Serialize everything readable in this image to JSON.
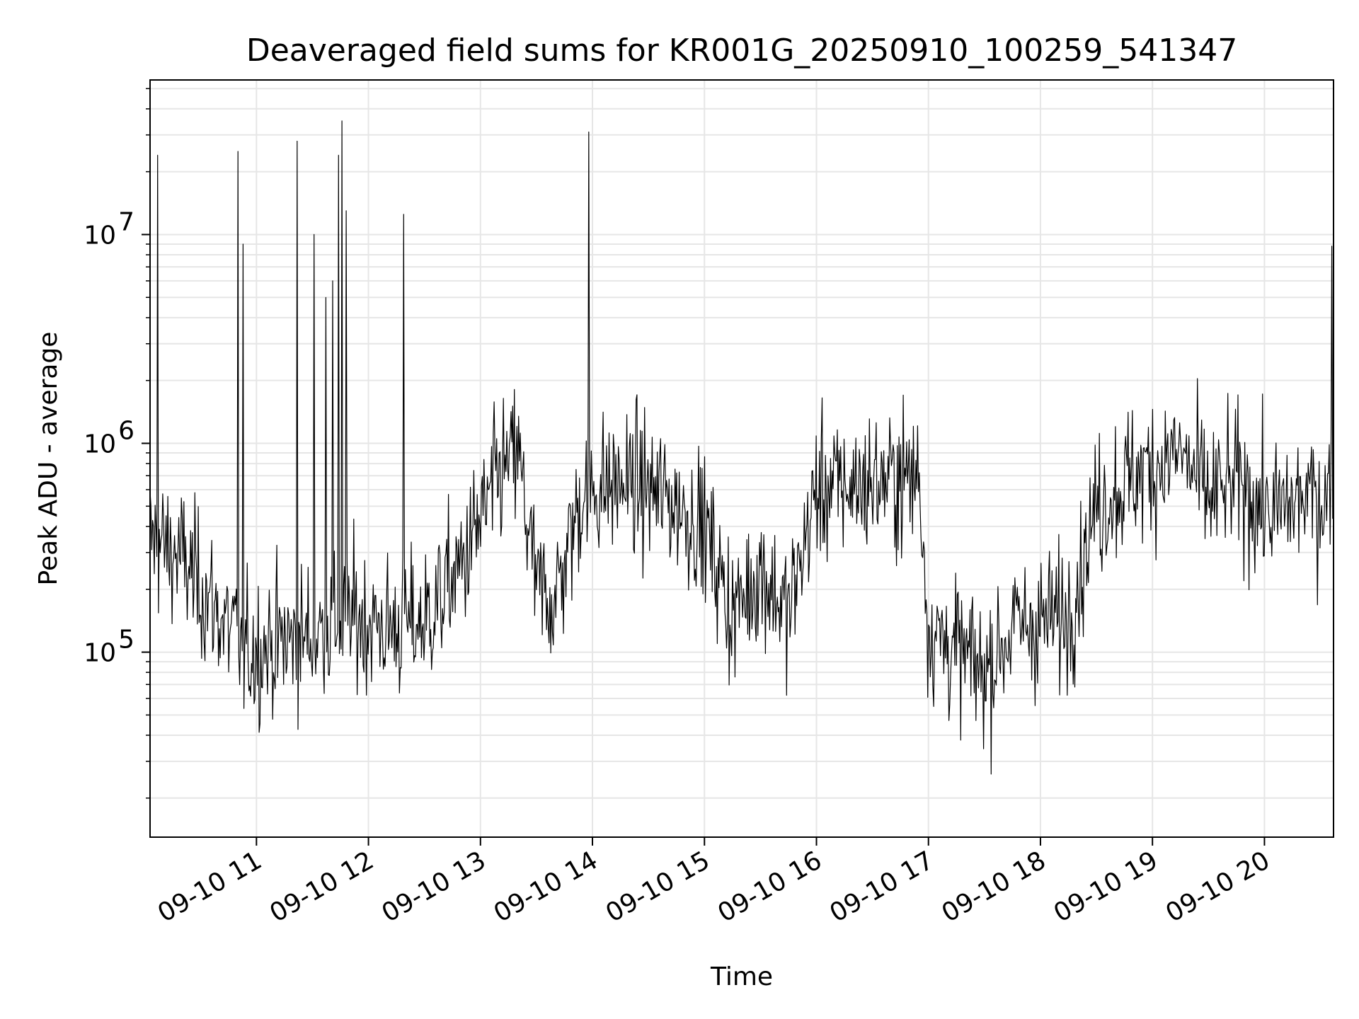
{
  "chart_data": {
    "type": "line",
    "title": "Deaveraged field sums for KR001G_20250910_100259_541347",
    "xlabel": "Time",
    "ylabel": "Peak ADU - average",
    "yscale": "log",
    "grid": true,
    "color": "#000000",
    "x_range": [
      "2025-09-10 10:03",
      "2025-09-10 20:37"
    ],
    "ylim": [
      13000,
      55000000
    ],
    "x_tick_labels": [
      "09-10 11",
      "09-10 12",
      "09-10 13",
      "09-10 14",
      "09-10 15",
      "09-10 16",
      "09-10 17",
      "09-10 18",
      "09-10 19",
      "09-10 20"
    ],
    "y_tick_labels": [
      {
        "base": "10",
        "exp": "5"
      },
      {
        "base": "10",
        "exp": "6"
      },
      {
        "base": "10",
        "exp": "7"
      }
    ],
    "series": [
      {
        "baseline": [
          [
            "10:03",
            350000
          ],
          [
            "10:20",
            280000
          ],
          [
            "10:40",
            150000
          ],
          [
            "10:55",
            100000
          ],
          [
            "11:10",
            110000
          ],
          [
            "11:30",
            120000
          ],
          [
            "11:50",
            150000
          ],
          [
            "12:10",
            130000
          ],
          [
            "12:30",
            140000
          ],
          [
            "12:50",
            260000
          ],
          [
            "13:10",
            700000
          ],
          [
            "13:20",
            900000
          ],
          [
            "13:30",
            200000
          ],
          [
            "13:40",
            180000
          ],
          [
            "13:55",
            600000
          ],
          [
            "14:20",
            650000
          ],
          [
            "14:40",
            550000
          ],
          [
            "15:00",
            400000
          ],
          [
            "15:15",
            150000
          ],
          [
            "15:30",
            250000
          ],
          [
            "15:45",
            150000
          ],
          [
            "16:00",
            600000
          ],
          [
            "16:30",
            650000
          ],
          [
            "16:55",
            700000
          ],
          [
            "17:00",
            130000
          ],
          [
            "17:30",
            80000
          ],
          [
            "17:45",
            130000
          ],
          [
            "18:15",
            150000
          ],
          [
            "18:30",
            500000
          ],
          [
            "18:50",
            700000
          ],
          [
            "19:15",
            900000
          ],
          [
            "19:30",
            550000
          ],
          [
            "19:45",
            650000
          ],
          [
            "20:05",
            450000
          ],
          [
            "20:20",
            550000
          ],
          [
            "20:37",
            550000
          ]
        ],
        "spikes": [
          [
            "10:07",
            24000000
          ],
          [
            "10:50",
            25000000
          ],
          [
            "10:53",
            9000000
          ],
          [
            "11:22",
            28000000
          ],
          [
            "11:31",
            10000000
          ],
          [
            "11:37",
            5000000
          ],
          [
            "11:41",
            6000000
          ],
          [
            "11:44",
            24000000
          ],
          [
            "11:46",
            35000000
          ],
          [
            "11:48",
            13000000
          ],
          [
            "12:19",
            12500000
          ],
          [
            "13:58",
            31000000
          ],
          [
            "20:36",
            8800000
          ]
        ]
      }
    ]
  }
}
